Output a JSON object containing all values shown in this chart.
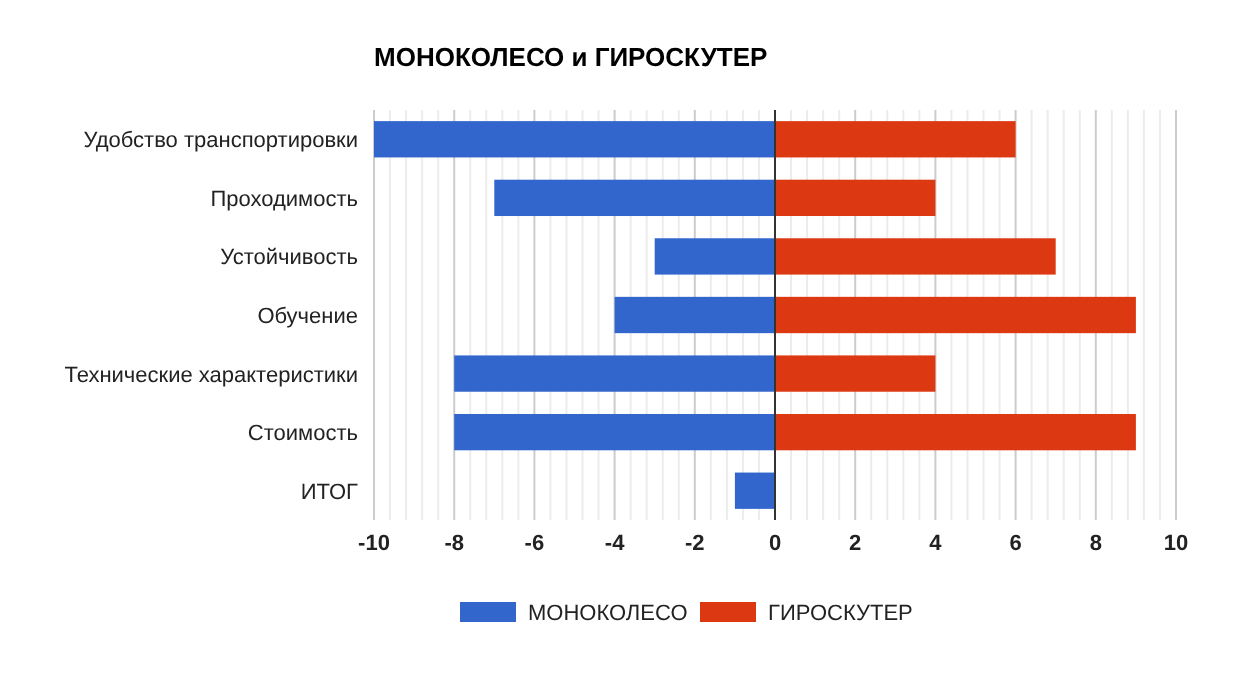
{
  "chart_data": {
    "type": "bar",
    "orientation": "horizontal",
    "stacked": true,
    "title": "МОНОКОЛЕСО и ГИРОСКУТЕР",
    "categories": [
      "Удобство транспортировки",
      "Проходимость",
      "Устойчивость",
      "Обучение",
      "Технические характеристики",
      "Стоимость",
      "ИТОГ"
    ],
    "series": [
      {
        "name": "МОНОКОЛЕСО",
        "color": "#3366cc",
        "values": [
          -10,
          -7,
          -3,
          -4,
          -8,
          -8,
          -1
        ]
      },
      {
        "name": "ГИРОСКУТЕР",
        "color": "#dc3912",
        "values": [
          6,
          4,
          7,
          9,
          4,
          9,
          null
        ]
      }
    ],
    "xlim": [
      -10,
      10
    ],
    "xticks": [
      -10,
      {
        "value": -9.6,
        "label": null
      },
      {
        "value": -9.2,
        "label": null
      },
      {
        "value": -8.8,
        "label": null
      },
      {
        "value": -8.4,
        "label": null
      },
      -8,
      {
        "value": -7.6,
        "label": null
      },
      {
        "value": -7.2,
        "label": null
      },
      {
        "value": -6.8,
        "label": null
      },
      {
        "value": -6.4,
        "label": null
      },
      -6,
      {
        "value": -5.6,
        "label": null
      },
      {
        "value": -5.2,
        "label": null
      },
      {
        "value": -4.8,
        "label": null
      },
      {
        "value": -4.4,
        "label": null
      },
      -4,
      {
        "value": -3.6,
        "label": null
      },
      {
        "value": -3.2,
        "label": null
      },
      {
        "value": -2.8,
        "label": null
      },
      {
        "value": -2.4,
        "label": null
      },
      -2,
      {
        "value": -1.6,
        "label": null
      },
      {
        "value": -1.2,
        "label": null
      },
      {
        "value": -0.8,
        "label": null
      },
      {
        "value": -0.4,
        "label": null
      },
      0,
      {
        "value": 0.4,
        "label": null
      },
      {
        "value": 0.8,
        "label": null
      },
      {
        "value": 1.2,
        "label": null
      },
      {
        "value": 1.6,
        "label": null
      },
      2,
      {
        "value": 2.4,
        "label": null
      },
      {
        "value": 2.8,
        "label": null
      },
      {
        "value": 3.2,
        "label": null
      },
      {
        "value": 3.6,
        "label": null
      },
      4,
      {
        "value": 4.4,
        "label": null
      },
      {
        "value": 4.8,
        "label": null
      },
      {
        "value": 5.2,
        "label": null
      },
      {
        "value": 5.6,
        "label": null
      },
      6,
      {
        "value": 6.4,
        "label": null
      },
      {
        "value": 6.8,
        "label": null
      },
      {
        "value": 7.2,
        "label": null
      },
      {
        "value": 7.6,
        "label": null
      },
      8,
      {
        "value": 8.4,
        "label": null
      },
      {
        "value": 8.8,
        "label": null
      },
      {
        "value": 9.2,
        "label": null
      },
      {
        "value": 9.6,
        "label": null
      },
      10
    ],
    "grid": true,
    "legend": "bottom"
  }
}
